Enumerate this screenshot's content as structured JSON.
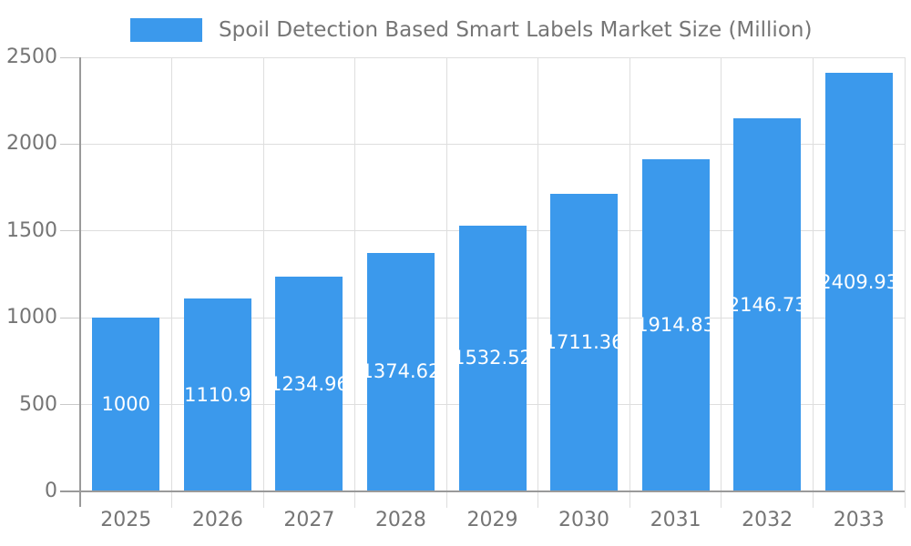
{
  "legend": {
    "label": "Spoil Detection Based Smart Labels Market Size (Million)",
    "marker_color": "#3b99ec"
  },
  "chart_data": {
    "type": "bar",
    "title": "Spoil Detection Based Smart Labels Market Size (Million)",
    "categories": [
      "2025",
      "2026",
      "2027",
      "2028",
      "2029",
      "2030",
      "2031",
      "2032",
      "2033"
    ],
    "values": [
      1000,
      1110.9,
      1234.96,
      1374.62,
      1532.52,
      1711.36,
      1914.83,
      2146.73,
      2409.93
    ],
    "value_labels": [
      "1000",
      "1110.9",
      "1234.96",
      "1374.62",
      "1532.52",
      "1711.36",
      "1914.83",
      "2146.73",
      "2409.93"
    ],
    "xlabel": "",
    "ylabel": "",
    "ylim": [
      0,
      2500
    ],
    "yticks": [
      0,
      500,
      1000,
      1500,
      2000,
      2500
    ],
    "ytick_labels": [
      "0",
      "500",
      "1000",
      "1500",
      "2000",
      "2500"
    ],
    "grid": true,
    "legend_position": "top",
    "bar_color": "#3b99ec",
    "bar_label_color": "#ffffff",
    "axis_text_color": "#757575",
    "gridline_color": "#dedede",
    "axis_line_color": "#9a9a9a"
  }
}
